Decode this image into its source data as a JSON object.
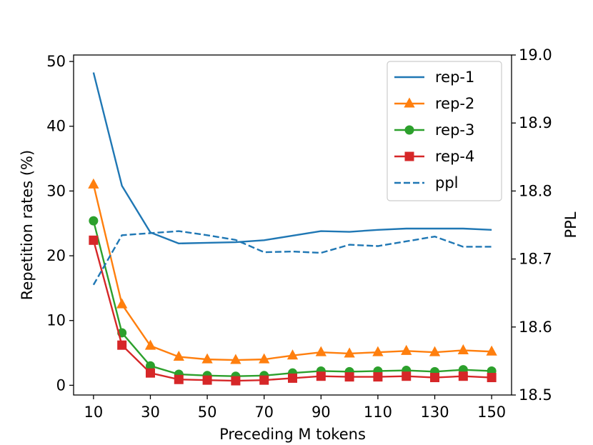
{
  "chart_data": {
    "type": "line",
    "x": [
      10,
      20,
      30,
      40,
      50,
      60,
      70,
      80,
      90,
      100,
      110,
      120,
      130,
      140,
      150
    ],
    "xlabel": "Preceding M tokens",
    "xticks": [
      10,
      30,
      50,
      70,
      90,
      110,
      130,
      150
    ],
    "xlim": [
      3,
      157
    ],
    "ylabel": "Repetition rates (%)",
    "ylim": [
      -1.5,
      51
    ],
    "yticks": [
      0,
      10,
      20,
      30,
      40,
      50
    ],
    "y2label": "PPL",
    "y2lim": [
      18.5,
      19.0
    ],
    "y2ticks": [
      "18.5",
      "18.6",
      "18.7",
      "18.8",
      "18.9",
      "19.0"
    ],
    "legend_position": "top-right",
    "series": [
      {
        "name": "rep-1",
        "axis": "left",
        "color": "#1f77b4",
        "style": "solid",
        "marker": "none",
        "values": [
          48.3,
          30.8,
          23.6,
          21.9,
          22.0,
          22.1,
          22.4,
          23.1,
          23.8,
          23.7,
          24.0,
          24.2,
          24.2,
          24.2,
          24.0
        ]
      },
      {
        "name": "rep-2",
        "axis": "left",
        "color": "#ff7f0e",
        "style": "solid",
        "marker": "triangle",
        "values": [
          31.0,
          12.5,
          6.1,
          4.4,
          4.0,
          3.9,
          4.0,
          4.6,
          5.1,
          4.9,
          5.1,
          5.3,
          5.1,
          5.4,
          5.2
        ]
      },
      {
        "name": "rep-3",
        "axis": "left",
        "color": "#2ca02c",
        "style": "solid",
        "marker": "circle",
        "values": [
          25.4,
          8.1,
          3.0,
          1.7,
          1.5,
          1.4,
          1.5,
          1.9,
          2.2,
          2.1,
          2.2,
          2.3,
          2.1,
          2.4,
          2.2
        ]
      },
      {
        "name": "rep-4",
        "axis": "left",
        "color": "#d62728",
        "style": "solid",
        "marker": "square",
        "values": [
          22.4,
          6.2,
          1.9,
          0.9,
          0.8,
          0.7,
          0.8,
          1.1,
          1.4,
          1.3,
          1.3,
          1.4,
          1.2,
          1.4,
          1.2
        ]
      },
      {
        "name": "ppl",
        "axis": "right",
        "color": "#1f77b4",
        "style": "dashed",
        "marker": "none",
        "values": [
          18.662,
          18.735,
          18.738,
          18.741,
          18.735,
          18.728,
          18.71,
          18.711,
          18.709,
          18.721,
          18.719,
          18.726,
          18.733,
          18.718,
          18.718
        ]
      }
    ]
  }
}
